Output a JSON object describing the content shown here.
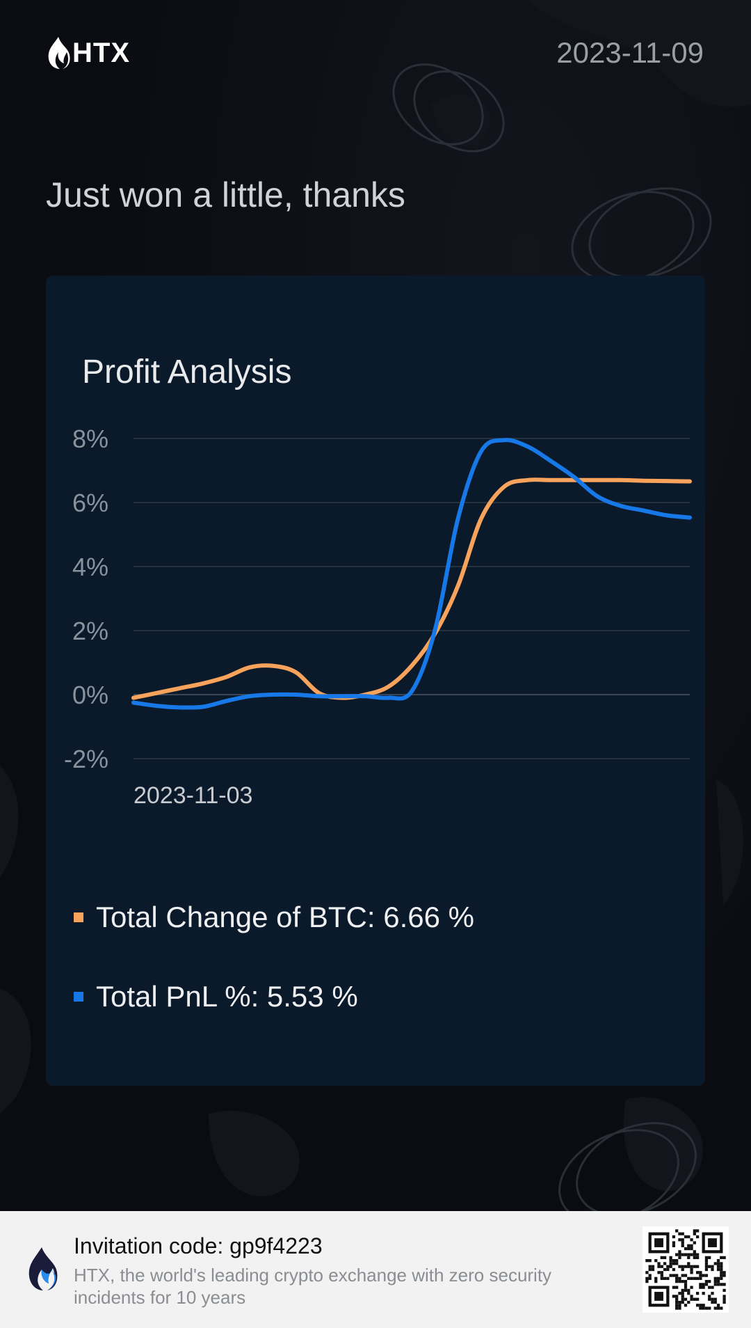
{
  "brand": {
    "name": "HTX",
    "accent": "#ffffff"
  },
  "header": {
    "date": "2023-11-09"
  },
  "tagline": "Just won a little, thanks",
  "card": {
    "title": "Profit Analysis"
  },
  "chart_data": {
    "type": "line",
    "title": "Profit Analysis",
    "x_start_label": "2023-11-03",
    "y_tick_labels": [
      "8%",
      "6%",
      "4%",
      "2%",
      "0%",
      "-2%"
    ],
    "y_ticks": [
      8,
      6,
      4,
      2,
      0,
      -2
    ],
    "ylim": [
      -2,
      8
    ],
    "grid": true,
    "x": [
      0,
      0.5,
      1,
      1.5,
      2,
      2.5,
      3,
      3.5,
      4,
      4.5,
      5,
      5.5,
      6,
      6.5,
      7,
      7.5,
      8,
      8.5,
      9,
      9.5,
      10,
      10.5,
      11,
      11.5,
      12
    ],
    "series": [
      {
        "name": "Total Change of BTC",
        "color": "#f7a35c",
        "values": [
          -0.1,
          0.05,
          0.2,
          0.35,
          0.55,
          0.85,
          0.9,
          0.7,
          0.05,
          -0.1,
          0.0,
          0.25,
          0.9,
          1.9,
          3.4,
          5.5,
          6.5,
          6.7,
          6.7,
          6.7,
          6.7,
          6.7,
          6.68,
          6.67,
          6.66
        ]
      },
      {
        "name": "Total PnL %",
        "color": "#1778e8",
        "values": [
          -0.25,
          -0.35,
          -0.4,
          -0.38,
          -0.2,
          -0.05,
          0.0,
          0.0,
          -0.05,
          -0.05,
          -0.05,
          -0.1,
          0.1,
          2.0,
          5.5,
          7.6,
          7.95,
          7.75,
          7.3,
          6.8,
          6.2,
          5.9,
          5.75,
          5.6,
          5.53
        ]
      }
    ],
    "legend": [
      {
        "label": "Total Change of BTC: 6.66 %",
        "color": "#f7a35c"
      },
      {
        "label": "Total PnL %: 5.53 %",
        "color": "#1778e8"
      }
    ]
  },
  "footer": {
    "invite_label": "Invitation code: gp9f4223",
    "slogan": "HTX, the world's leading crypto exchange with zero security incidents for 10 years",
    "qr_icon": "qr-code-icon"
  }
}
